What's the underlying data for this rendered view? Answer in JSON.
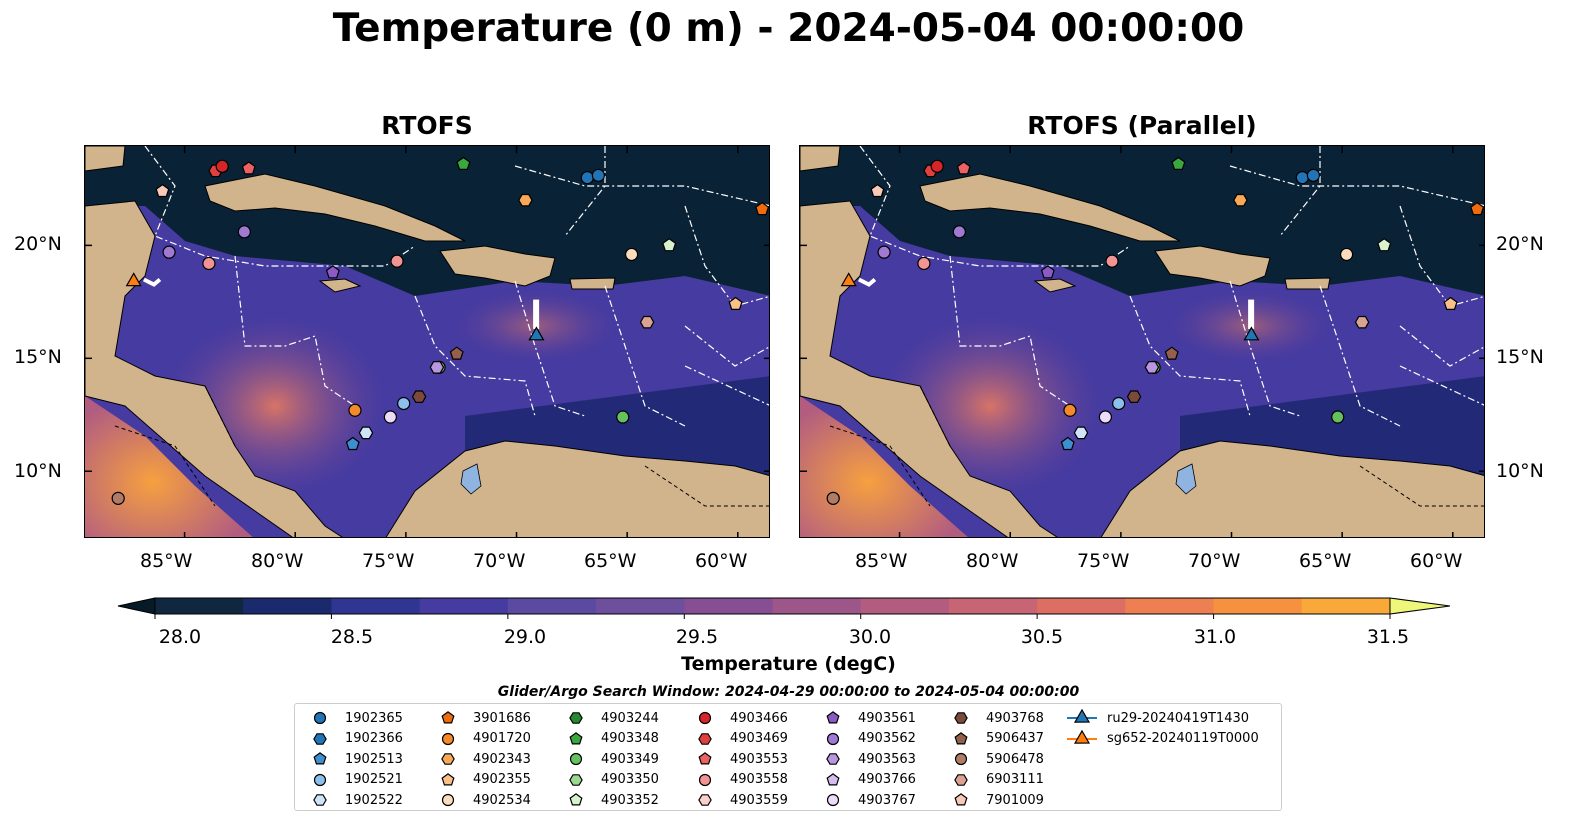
{
  "title": "Temperature (0 m) - 2024-05-04 00:00:00",
  "panels": [
    {
      "title": "RTOFS"
    },
    {
      "title": "RTOFS (Parallel)"
    }
  ],
  "axes": {
    "lon_ticks": [
      "85°W",
      "80°W",
      "75°W",
      "70°W",
      "65°W",
      "60°W"
    ],
    "lon_values": [
      -85,
      -80,
      -75,
      -70,
      -65,
      -60
    ],
    "lat_ticks": [
      "20°N",
      "15°N",
      "10°N"
    ],
    "lat_values": [
      20,
      15,
      10
    ],
    "xlim": [
      -89.5,
      -58.5
    ],
    "ylim": [
      7,
      24.4
    ]
  },
  "colorbar": {
    "label": "Temperature (degC)",
    "ticks": [
      "28.0",
      "28.5",
      "29.0",
      "29.5",
      "30.0",
      "30.5",
      "31.0",
      "31.5"
    ],
    "tick_values": [
      28.0,
      28.5,
      29.0,
      29.5,
      30.0,
      30.5,
      31.0,
      31.5
    ],
    "vmin": 28.0,
    "vmax": 31.5,
    "step": 0.25,
    "colors": [
      "#0f2840",
      "#1a2a6c",
      "#2f3590",
      "#463ba0",
      "#5a4aa0",
      "#6e4f9d",
      "#864f94",
      "#9c5689",
      "#b25d80",
      "#c86574",
      "#dd6e64",
      "#ee7f52",
      "#f6923f",
      "#f8a93a",
      "#f7c540",
      "#f0e050",
      "#ebf56e"
    ],
    "under_color": "#061a28",
    "over_color": "#eef77a"
  },
  "search_window": "Glider/Argo Search Window: 2024-04-29 00:00:00 to 2024-05-04 00:00:00",
  "legend": [
    {
      "label": "1902365",
      "marker": "circle",
      "color": "#2274b6"
    },
    {
      "label": "1902366",
      "marker": "hexagon",
      "color": "#2274b6"
    },
    {
      "label": "1902513",
      "marker": "pentagon",
      "color": "#3d8fd0"
    },
    {
      "label": "1902521",
      "marker": "circle",
      "color": "#8cc0ea"
    },
    {
      "label": "1902522",
      "marker": "hexagon",
      "color": "#cfe5f7"
    },
    {
      "label": "3901686",
      "marker": "pentagon",
      "color": "#ef6c0e"
    },
    {
      "label": "4901720",
      "marker": "circle",
      "color": "#f58a2c"
    },
    {
      "label": "4902343",
      "marker": "hexagon",
      "color": "#f8a856"
    },
    {
      "label": "4902355",
      "marker": "pentagon",
      "color": "#f9c08a"
    },
    {
      "label": "4902534",
      "marker": "circle",
      "color": "#fcdcbc"
    },
    {
      "label": "4903244",
      "marker": "hexagon",
      "color": "#238b2e"
    },
    {
      "label": "4903348",
      "marker": "pentagon",
      "color": "#3aa83f"
    },
    {
      "label": "4903349",
      "marker": "circle",
      "color": "#66c060"
    },
    {
      "label": "4903350",
      "marker": "hexagon",
      "color": "#9dd893"
    },
    {
      "label": "4903352",
      "marker": "pentagon",
      "color": "#d8f2ce"
    },
    {
      "label": "4903466",
      "marker": "circle",
      "color": "#d62528"
    },
    {
      "label": "4903469",
      "marker": "hexagon",
      "color": "#e0403e"
    },
    {
      "label": "4903553",
      "marker": "pentagon",
      "color": "#ec6264"
    },
    {
      "label": "4903558",
      "marker": "circle",
      "color": "#f39494"
    },
    {
      "label": "4903559",
      "marker": "hexagon",
      "color": "#fbd0cc"
    },
    {
      "label": "4903561",
      "marker": "pentagon",
      "color": "#8a5bc4"
    },
    {
      "label": "4903562",
      "marker": "circle",
      "color": "#a07ad2"
    },
    {
      "label": "4903563",
      "marker": "hexagon",
      "color": "#b997e0"
    },
    {
      "label": "4903766",
      "marker": "pentagon",
      "color": "#d3bdee"
    },
    {
      "label": "4903767",
      "marker": "circle",
      "color": "#ecdcf8"
    },
    {
      "label": "4903768",
      "marker": "hexagon",
      "color": "#7a4a3a"
    },
    {
      "label": "5906437",
      "marker": "pentagon",
      "color": "#94604c"
    },
    {
      "label": "5906478",
      "marker": "circle",
      "color": "#b07c68"
    },
    {
      "label": "6903111",
      "marker": "hexagon",
      "color": "#d9a293"
    },
    {
      "label": "7901009",
      "marker": "pentagon",
      "color": "#f6c9b8"
    },
    {
      "label": "ru29-20240419T1430",
      "marker": "triangle",
      "color": "#1f77b4",
      "line": true
    },
    {
      "label": "sg652-20240119T0000",
      "marker": "triangle",
      "color": "#ff7f0e",
      "line": true
    }
  ],
  "points": [
    {
      "lon": -88.0,
      "lat": 8.8,
      "marker": "circle",
      "color": "#b07c68"
    },
    {
      "lon": -87.3,
      "lat": 18.4,
      "marker": "triangle",
      "color": "#ff7f0e"
    },
    {
      "lon": -86.0,
      "lat": 22.4,
      "marker": "pentagon",
      "color": "#f6c9b8"
    },
    {
      "lon": -85.7,
      "lat": 19.7,
      "marker": "circle",
      "color": "#a07ad2"
    },
    {
      "lon": -83.9,
      "lat": 19.2,
      "marker": "circle",
      "color": "#f39494"
    },
    {
      "lon": -82.3,
      "lat": 20.6,
      "marker": "circle",
      "color": "#a07ad2"
    },
    {
      "lon": -83.6,
      "lat": 23.3,
      "marker": "hexagon",
      "color": "#e0403e"
    },
    {
      "lon": -83.3,
      "lat": 23.5,
      "marker": "circle",
      "color": "#d62528"
    },
    {
      "lon": -82.1,
      "lat": 23.4,
      "marker": "pentagon",
      "color": "#ec6264"
    },
    {
      "lon": -78.3,
      "lat": 18.8,
      "marker": "pentagon",
      "color": "#8a5bc4"
    },
    {
      "lon": -77.3,
      "lat": 12.7,
      "marker": "circle",
      "color": "#f58a2c"
    },
    {
      "lon": -77.4,
      "lat": 11.2,
      "marker": "pentagon",
      "color": "#3d8fd0"
    },
    {
      "lon": -76.8,
      "lat": 11.7,
      "marker": "hexagon",
      "color": "#cfe5f7"
    },
    {
      "lon": -75.7,
      "lat": 12.4,
      "marker": "circle",
      "color": "#ecdcf8"
    },
    {
      "lon": -75.1,
      "lat": 13.0,
      "marker": "circle",
      "color": "#8cc0ea"
    },
    {
      "lon": -74.4,
      "lat": 13.3,
      "marker": "hexagon",
      "color": "#7a4a3a"
    },
    {
      "lon": -75.4,
      "lat": 19.3,
      "marker": "circle",
      "color": "#f39494"
    },
    {
      "lon": -73.5,
      "lat": 14.6,
      "marker": "circle",
      "color": "#66c060"
    },
    {
      "lon": -73.6,
      "lat": 14.6,
      "marker": "hexagon",
      "color": "#b997e0"
    },
    {
      "lon": -72.7,
      "lat": 15.2,
      "marker": "pentagon",
      "color": "#94604c"
    },
    {
      "lon": -72.4,
      "lat": 23.6,
      "marker": "pentagon",
      "color": "#3aa83f"
    },
    {
      "lon": -69.1,
      "lat": 16.0,
      "marker": "triangle",
      "color": "#1f77b4"
    },
    {
      "lon": -69.6,
      "lat": 22.0,
      "marker": "hexagon",
      "color": "#f8a856"
    },
    {
      "lon": -66.8,
      "lat": 23.0,
      "marker": "circle",
      "color": "#2274b6"
    },
    {
      "lon": -66.3,
      "lat": 23.1,
      "marker": "circle",
      "color": "#2274b6"
    },
    {
      "lon": -65.2,
      "lat": 12.4,
      "marker": "circle",
      "color": "#66c060"
    },
    {
      "lon": -64.8,
      "lat": 19.6,
      "marker": "circle",
      "color": "#fcdcbc"
    },
    {
      "lon": -64.1,
      "lat": 16.6,
      "marker": "hexagon",
      "color": "#d9a293"
    },
    {
      "lon": -63.1,
      "lat": 20.0,
      "marker": "pentagon",
      "color": "#d8f2ce"
    },
    {
      "lon": -60.1,
      "lat": 17.4,
      "marker": "pentagon",
      "color": "#f9c08a"
    },
    {
      "lon": -58.9,
      "lat": 21.6,
      "marker": "pentagon",
      "color": "#ef6c0e"
    }
  ]
}
